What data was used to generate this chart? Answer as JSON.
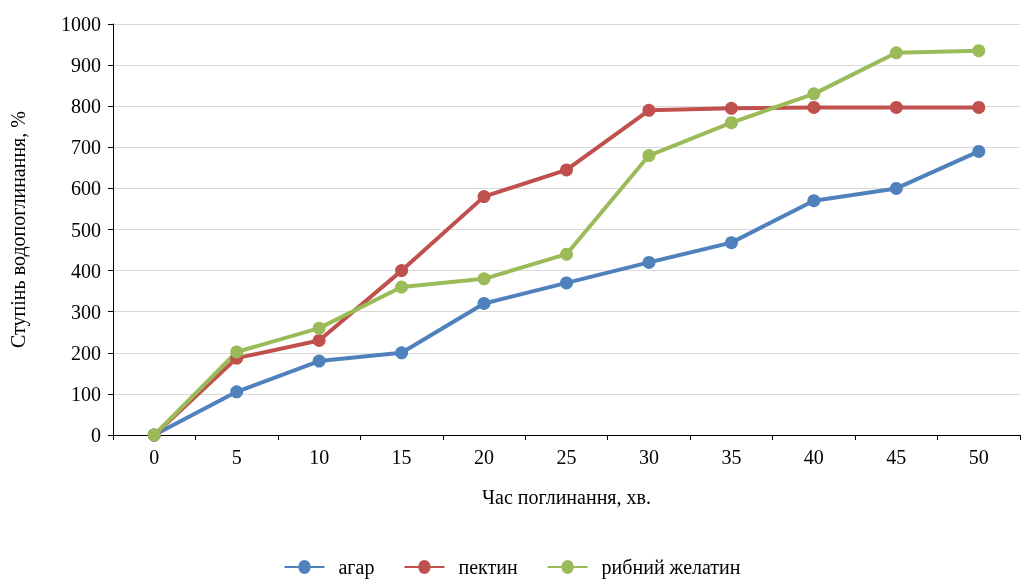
{
  "chart_data": {
    "type": "line",
    "xlabel": "Час поглинання, хв.",
    "ylabel": "Ступінь водопоглинання, %",
    "categories": [
      "0",
      "5",
      "10",
      "15",
      "20",
      "25",
      "30",
      "35",
      "40",
      "45",
      "50"
    ],
    "series": [
      {
        "name": "агар",
        "color": "#4f81bd",
        "values": [
          0,
          105,
          180,
          200,
          320,
          370,
          420,
          468,
          570,
          600,
          690
        ]
      },
      {
        "name": "пектин",
        "color": "#c0504d",
        "values": [
          0,
          187,
          230,
          400,
          580,
          645,
          790,
          795,
          797,
          797,
          797
        ]
      },
      {
        "name": "рибний желатин",
        "color": "#9bbb59",
        "values": [
          0,
          202,
          260,
          360,
          380,
          440,
          680,
          760,
          830,
          930,
          935
        ]
      }
    ],
    "ylim": [
      0,
      1000
    ],
    "yticks": [
      0,
      100,
      200,
      300,
      400,
      500,
      600,
      700,
      800,
      900,
      1000
    ],
    "grid": "y",
    "legend": "bottom",
    "marker": "circle",
    "line_style": "solid"
  }
}
